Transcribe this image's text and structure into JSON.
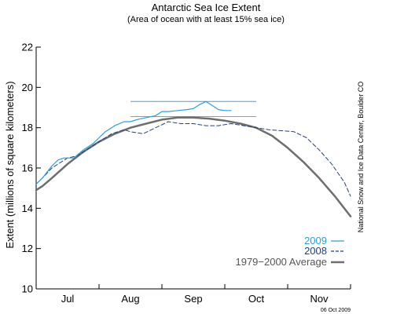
{
  "chart_data": {
    "type": "line",
    "title": "Antarctic Sea Ice Extent",
    "subtitle": "(Area of ocean with at least 15% sea ice)",
    "ylabel": "Extent (millions of square kilometers)",
    "xlabel": "",
    "ylim": [
      10,
      22
    ],
    "yticks": [
      10,
      12,
      14,
      16,
      18,
      20,
      22
    ],
    "xlim": [
      0,
      5
    ],
    "xticks": [
      {
        "label": "Jul",
        "x": 0.5
      },
      {
        "label": "Aug",
        "x": 1.5
      },
      {
        "label": "Sep",
        "x": 2.5
      },
      {
        "label": "Oct",
        "x": 3.5
      },
      {
        "label": "Nov",
        "x": 4.5
      }
    ],
    "legend_position": "bottom-right",
    "grid": false,
    "credit": "National Snow and Ice Data Center, Boulder CO",
    "date_stamp": "06 Oct 2009",
    "reference_lines": [
      {
        "name": "2009",
        "value": 19.3,
        "x_range": [
          1.5,
          3.5
        ],
        "color": "#3da0dc"
      },
      {
        "name": "1979-2000 Average",
        "value": 18.55,
        "x_range": [
          1.5,
          3.5
        ],
        "color": "#999999"
      }
    ],
    "series": [
      {
        "name": "2009",
        "color": "#2a9fe0",
        "style": "solid",
        "x": [
          0,
          0.1,
          0.25,
          0.35,
          0.45,
          0.6,
          0.75,
          0.9,
          1.0,
          1.1,
          1.25,
          1.4,
          1.5,
          1.6,
          1.75,
          1.9,
          2.0,
          2.1,
          2.25,
          2.4,
          2.5,
          2.6,
          2.7,
          2.8,
          2.9,
          3.0,
          3.1
        ],
        "y": [
          15.2,
          15.5,
          16.1,
          16.4,
          16.5,
          16.5,
          16.9,
          17.2,
          17.5,
          17.8,
          18.1,
          18.3,
          18.3,
          18.4,
          18.5,
          18.6,
          18.8,
          18.8,
          18.85,
          18.9,
          18.95,
          19.15,
          19.3,
          19.1,
          18.9,
          18.85,
          18.85
        ]
      },
      {
        "name": "2008",
        "color": "#23407a",
        "style": "dashed",
        "x": [
          0,
          0.1,
          0.25,
          0.4,
          0.5,
          0.65,
          0.8,
          1.0,
          1.2,
          1.4,
          1.5,
          1.7,
          1.9,
          2.1,
          2.3,
          2.5,
          2.7,
          2.9,
          3.1,
          3.3,
          3.5,
          3.7,
          3.9,
          4.1,
          4.3,
          4.5,
          4.7,
          4.9,
          5.0
        ],
        "y": [
          15.2,
          15.5,
          16.0,
          16.3,
          16.5,
          16.6,
          16.9,
          17.3,
          17.7,
          17.9,
          17.8,
          17.7,
          18.0,
          18.3,
          18.2,
          18.2,
          18.1,
          18.1,
          18.2,
          18.1,
          18.0,
          17.9,
          17.85,
          17.8,
          17.5,
          16.9,
          16.2,
          15.3,
          14.6
        ]
      },
      {
        "name": "1979-2000 Average",
        "color": "#6e6e6e",
        "style": "solid",
        "x": [
          0,
          0.1,
          0.25,
          0.5,
          0.75,
          1.0,
          1.25,
          1.5,
          1.75,
          2.0,
          2.25,
          2.5,
          2.75,
          3.0,
          3.25,
          3.5,
          3.75,
          4.0,
          4.25,
          4.5,
          4.75,
          5.0
        ],
        "y": [
          14.9,
          15.1,
          15.5,
          16.2,
          16.8,
          17.3,
          17.7,
          18.0,
          18.2,
          18.4,
          18.5,
          18.5,
          18.45,
          18.35,
          18.2,
          18.0,
          17.6,
          17.0,
          16.3,
          15.5,
          14.6,
          13.6
        ]
      }
    ],
    "legend": [
      {
        "label": "2009",
        "color": "#2a9fe0",
        "text_color": "#2a9fe0",
        "style": "solid"
      },
      {
        "label": "2008",
        "color": "#23407a",
        "text_color": "#23407a",
        "style": "dashed"
      },
      {
        "label": "1979−2000 Average",
        "color": "#6e6e6e",
        "text_color": "#555555",
        "style": "solid"
      }
    ]
  }
}
